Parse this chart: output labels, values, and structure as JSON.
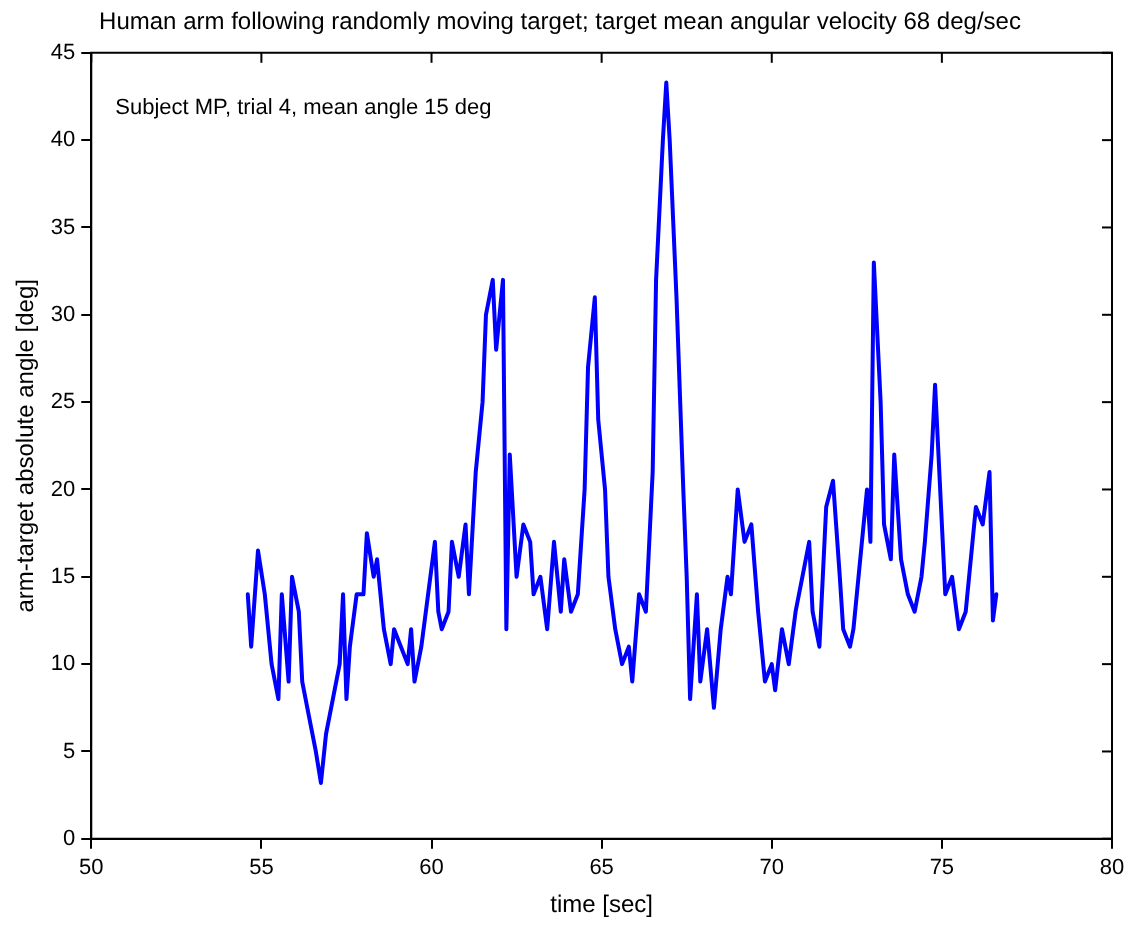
{
  "chart_data": {
    "type": "line",
    "title": "Human arm following randomly moving target; target mean angular velocity 68 deg/sec",
    "xlabel": "time [sec]",
    "ylabel": "arm-target absolute angle [deg]",
    "annotations": [
      "Subject MP, trial 4, mean angle 15 deg"
    ],
    "xlim": [
      50,
      80
    ],
    "xticks": [
      50,
      55,
      60,
      65,
      70,
      75,
      80
    ],
    "ylim": [
      0,
      45
    ],
    "yticks": [
      0,
      5,
      10,
      15,
      20,
      25,
      30,
      35,
      40,
      45
    ],
    "grid": false,
    "legend": false,
    "marker": "none",
    "line_style": "solid",
    "x": [
      54.6,
      54.7,
      54.9,
      55.1,
      55.3,
      55.5,
      55.6,
      55.8,
      55.9,
      56.1,
      56.2,
      56.4,
      56.6,
      56.75,
      56.9,
      57.1,
      57.3,
      57.4,
      57.5,
      57.6,
      57.8,
      58.0,
      58.1,
      58.3,
      58.4,
      58.6,
      58.8,
      58.9,
      59.1,
      59.3,
      59.4,
      59.5,
      59.7,
      59.9,
      60.1,
      60.2,
      60.3,
      60.5,
      60.6,
      60.8,
      61.0,
      61.1,
      61.3,
      61.5,
      61.6,
      61.8,
      61.9,
      62.1,
      62.2,
      62.3,
      62.5,
      62.7,
      62.9,
      63.0,
      63.2,
      63.4,
      63.6,
      63.8,
      63.9,
      64.1,
      64.3,
      64.5,
      64.6,
      64.8,
      64.9,
      65.1,
      65.2,
      65.4,
      65.6,
      65.8,
      65.9,
      66.1,
      66.3,
      66.5,
      66.6,
      66.8,
      66.9,
      67.0,
      67.2,
      67.4,
      67.5,
      67.6,
      67.8,
      67.9,
      68.1,
      68.3,
      68.5,
      68.7,
      68.8,
      69.0,
      69.2,
      69.4,
      69.6,
      69.8,
      70.0,
      70.1,
      70.3,
      70.5,
      70.7,
      70.9,
      71.0,
      71.1,
      71.2,
      71.4,
      71.6,
      71.8,
      72.0,
      72.1,
      72.3,
      72.4,
      72.6,
      72.8,
      72.9,
      73.0,
      73.2,
      73.3,
      73.5,
      73.6,
      73.8,
      74.0,
      74.2,
      74.4,
      74.5,
      74.7,
      74.8,
      75.0,
      75.1,
      75.3,
      75.5,
      75.7,
      75.9,
      76.0,
      76.2,
      76.4,
      76.5,
      76.6
    ],
    "series": [
      {
        "color": "#0000ff",
        "values": [
          14,
          11,
          16.5,
          14,
          10,
          8,
          14,
          9,
          15,
          13,
          9,
          7,
          5,
          3.2,
          6,
          8,
          10,
          14,
          8,
          11,
          14,
          14,
          17.5,
          15,
          16,
          12,
          10,
          12,
          11,
          10,
          12,
          9,
          11,
          14,
          17,
          13,
          12,
          13,
          17,
          15,
          18,
          14,
          21,
          25,
          30,
          32,
          28,
          32,
          12,
          22,
          15,
          18,
          17,
          14,
          15,
          12,
          17,
          13,
          16,
          13,
          14,
          20,
          27,
          31,
          24,
          20,
          15,
          12,
          10,
          11,
          9,
          14,
          13,
          21,
          32,
          40,
          43.3,
          40,
          31,
          20,
          15,
          8,
          14,
          9,
          12,
          7.5,
          12,
          15,
          14,
          20,
          17,
          18,
          13,
          9,
          10,
          8.5,
          12,
          10,
          13,
          15,
          16,
          17,
          13,
          11,
          19,
          20.5,
          15,
          12,
          11,
          12,
          16,
          20,
          17,
          33,
          25,
          18,
          16,
          22,
          16,
          14,
          13,
          15,
          17,
          22,
          26,
          18,
          14,
          15,
          12,
          13,
          17,
          19,
          18,
          21,
          12.5,
          14
        ]
      }
    ]
  }
}
